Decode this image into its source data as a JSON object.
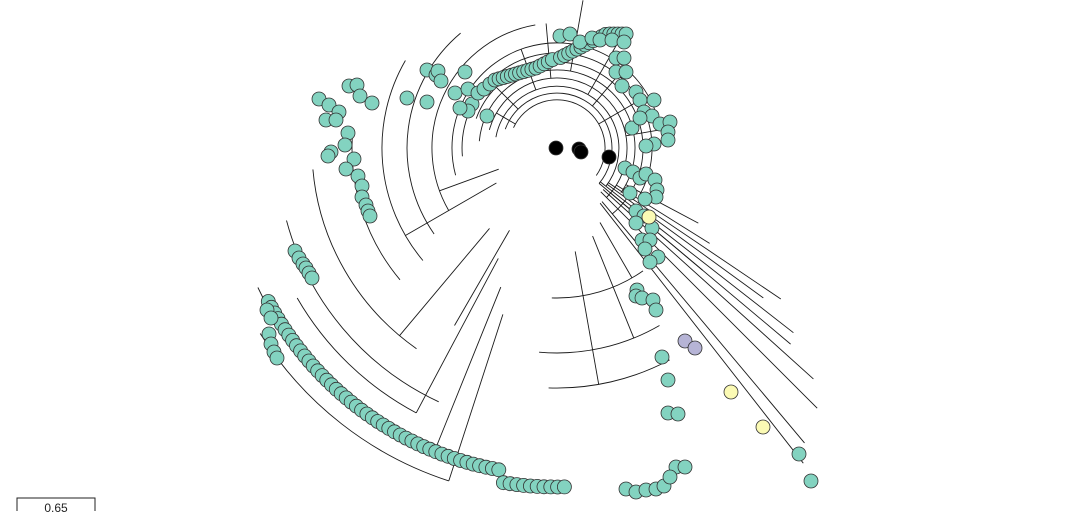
{
  "scale_bar": {
    "label": "0.65"
  },
  "colors": {
    "tip_default": "#83d3c0",
    "tip_purple": "#b6b4d6",
    "tip_yellow": "#fbfab4",
    "branch": "#1a1a1a"
  },
  "tips": {
    "default_group": "teal",
    "highlight_groups": [
      "purple",
      "yellow"
    ]
  }
}
